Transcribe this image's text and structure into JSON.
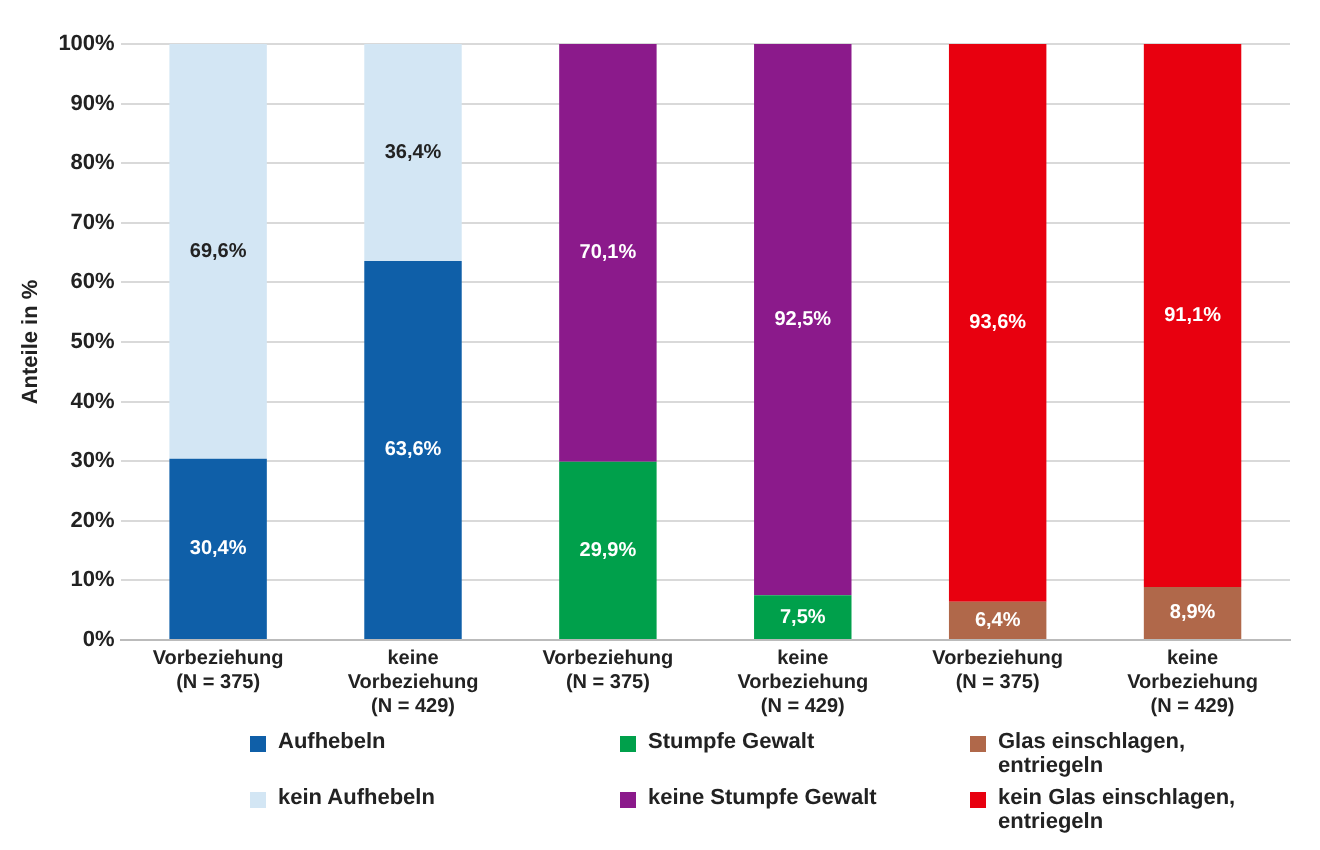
{
  "chart_data": {
    "type": "bar",
    "stacked": true,
    "ylabel": "Anteile in %",
    "categories": [
      "Vorbeziehung\n(N = 375)",
      "keine\nVorbeziehung\n(N = 429)",
      "Vorbeziehung\n(N = 375)",
      "keine\nVorbeziehung\n(N = 429)",
      "Vorbeziehung\n(N = 375)",
      "keine\nVorbeziehung\n(N = 429)"
    ],
    "ylim": [
      0,
      100
    ],
    "yticks": [
      {
        "value": 0,
        "label": "0%"
      },
      {
        "value": 10,
        "label": "10%"
      },
      {
        "value": 20,
        "label": "20%"
      },
      {
        "value": 30,
        "label": "30%"
      },
      {
        "value": 40,
        "label": "40%"
      },
      {
        "value": 50,
        "label": "50%"
      },
      {
        "value": 60,
        "label": "60%"
      },
      {
        "value": 70,
        "label": "70%"
      },
      {
        "value": 80,
        "label": "80%"
      },
      {
        "value": 90,
        "label": "90%"
      },
      {
        "value": 100,
        "label": "100%"
      }
    ],
    "grid": "y",
    "legend": "bottom",
    "series": [
      {
        "name": "Aufhebeln",
        "color": "#0f5fa8",
        "values": [
          30.4,
          63.6,
          null,
          null,
          null,
          null
        ],
        "value_labels": [
          "30,4%",
          "63,6%",
          null,
          null,
          null,
          null
        ]
      },
      {
        "name": "kein Aufhebeln",
        "color": "#d3e6f4",
        "values": [
          69.6,
          36.4,
          null,
          null,
          null,
          null
        ],
        "value_labels": [
          "69,6%",
          "36,4%",
          null,
          null,
          null,
          null
        ]
      },
      {
        "name": "Stumpfe Gewalt",
        "color": "#00a04b",
        "values": [
          null,
          null,
          29.9,
          7.5,
          null,
          null
        ],
        "value_labels": [
          null,
          null,
          "29,9%",
          "7,5%",
          null,
          null
        ]
      },
      {
        "name": "keine Stumpfe Gewalt",
        "color": "#8b1a8b",
        "values": [
          null,
          null,
          70.1,
          92.5,
          null,
          null
        ],
        "value_labels": [
          null,
          null,
          "70,1%",
          "92,5%",
          null,
          null
        ]
      },
      {
        "name": "Glas einschlagen, entriegeln",
        "color": "#b0684a",
        "values": [
          null,
          null,
          null,
          null,
          6.4,
          8.9
        ],
        "value_labels": [
          null,
          null,
          null,
          null,
          "6,4%",
          "8,9%"
        ]
      },
      {
        "name": "kein Glas einschlagen, entriegeln",
        "color": "#e8000f",
        "values": [
          null,
          null,
          null,
          null,
          93.6,
          91.1
        ],
        "value_labels": [
          null,
          null,
          null,
          null,
          "93,6%",
          "91,1%"
        ]
      }
    ]
  }
}
